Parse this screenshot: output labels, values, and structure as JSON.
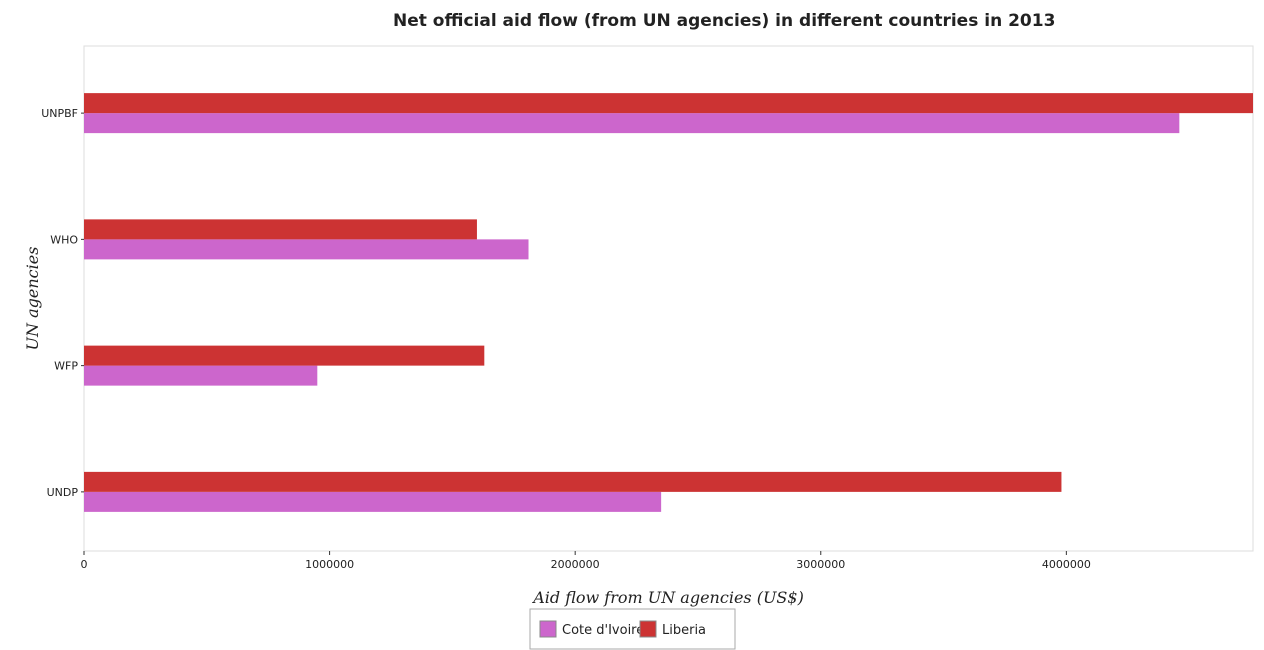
{
  "colors": {
    "cote": "#cc66cc",
    "liberia": "#cc3333",
    "frame": "#dddddd",
    "text": "#222222"
  },
  "chart_data": {
    "type": "bar",
    "orientation": "horizontal",
    "title": "Net official aid flow (from UN agencies) in different countries in 2013",
    "xlabel": "Aid flow from UN agencies (US$)",
    "ylabel": "UN agencies",
    "categories": [
      "UNPBF",
      "WHO",
      "WFP",
      "UNDP"
    ],
    "series": [
      {
        "name": "Cote d'Ivoire",
        "color": "#cc66cc",
        "values": [
          4460000,
          1810000,
          950000,
          2350000
        ]
      },
      {
        "name": "Liberia",
        "color": "#cc3333",
        "values": [
          4760000,
          1600000,
          1630000,
          3980000
        ]
      }
    ],
    "xticks": [
      0,
      1000000,
      2000000,
      3000000,
      4000000
    ],
    "xtick_labels": [
      "0",
      "1000000",
      "2000000",
      "3000000",
      "4000000"
    ],
    "xlim": [
      0,
      4760000
    ],
    "grid": false,
    "legend": "bottom-center"
  }
}
